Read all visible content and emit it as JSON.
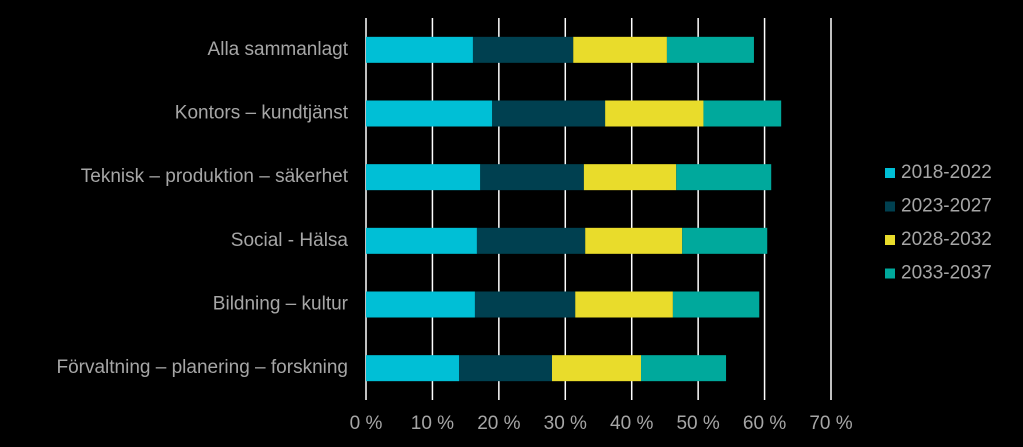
{
  "chart_data": {
    "type": "stacked-bar-horizontal",
    "categories": [
      "Alla sammanlagt",
      "Kontors – kundtjänst",
      "Teknisk – produktion – säkerhet",
      "Social - Hälsa",
      "Bildning – kultur",
      "Förvaltning – planering – forskning"
    ],
    "series": [
      {
        "name": "2018-2022",
        "color": "#00bfd6",
        "values": [
          16.1,
          19.0,
          17.2,
          16.7,
          16.4,
          14.0
        ]
      },
      {
        "name": "2023-2027",
        "color": "#004050",
        "values": [
          15.1,
          17.0,
          15.6,
          16.3,
          15.1,
          14.0
        ]
      },
      {
        "name": "2028-2032",
        "color": "#e9dc2b",
        "values": [
          14.1,
          14.8,
          13.9,
          14.6,
          14.7,
          13.4
        ]
      },
      {
        "name": "2033-2037",
        "color": "#00a99c",
        "values": [
          13.1,
          11.7,
          14.3,
          12.8,
          13.0,
          12.8
        ]
      }
    ],
    "xlim": [
      0,
      70
    ],
    "xticks": [
      {
        "value": 0,
        "label": "0 %"
      },
      {
        "value": 10,
        "label": "10 %"
      },
      {
        "value": 20,
        "label": "20 %"
      },
      {
        "value": 30,
        "label": "30 %"
      },
      {
        "value": 40,
        "label": "40 %"
      },
      {
        "value": 50,
        "label": "50 %"
      },
      {
        "value": 60,
        "label": "60 %"
      },
      {
        "value": 70,
        "label": "70 %"
      }
    ],
    "grid": true,
    "legend": "right"
  }
}
